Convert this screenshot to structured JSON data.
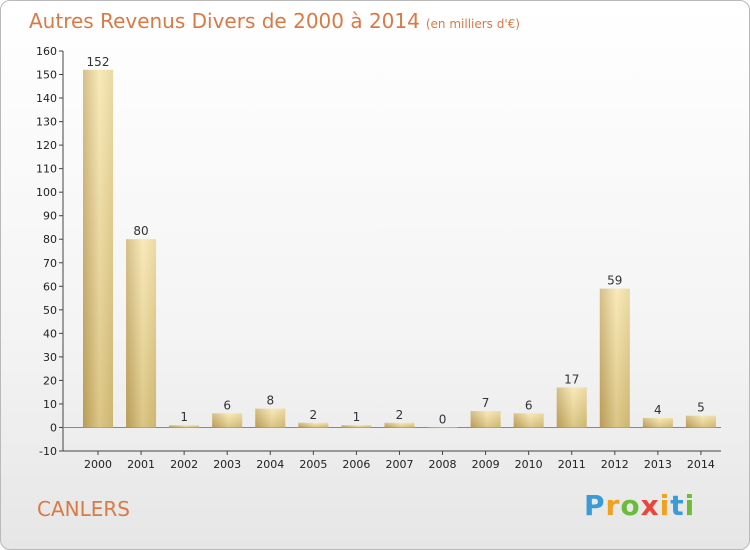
{
  "header": {
    "title": "Autres Revenus Divers de 2000 à 2014",
    "unit": "(en milliers d'€)"
  },
  "footer": {
    "commune": "CANLERS",
    "logo": {
      "letters": [
        "P",
        "r",
        "o",
        "x",
        "i",
        "t",
        "i"
      ],
      "colors": [
        "#3b9bd6",
        "#f0a11e",
        "#6cbb3c",
        "#e8463c",
        "#f0a11e",
        "#3b9bd6",
        "#6cbb3c"
      ]
    }
  },
  "colors": {
    "title": "#d97a45",
    "bar_light": "#f6e3a3",
    "bar_dark": "#c8aa63",
    "grid": "#cccccc"
  },
  "chart_data": {
    "type": "bar",
    "title": "Autres Revenus Divers de 2000 à 2014",
    "subtitle": "(en milliers d'€)",
    "categories": [
      "2000",
      "2001",
      "2002",
      "2003",
      "2004",
      "2005",
      "2006",
      "2007",
      "2008",
      "2009",
      "2010",
      "2011",
      "2012",
      "2013",
      "2014"
    ],
    "values": [
      152,
      80,
      1,
      6,
      8,
      2,
      1,
      2,
      0,
      7,
      6,
      17,
      59,
      4,
      5
    ],
    "ylim": [
      -10,
      160
    ],
    "yticks": [
      -10,
      0,
      10,
      20,
      30,
      40,
      50,
      60,
      70,
      80,
      90,
      100,
      110,
      120,
      130,
      140,
      150,
      160
    ],
    "xlabel": "",
    "ylabel": "",
    "grid": false
  }
}
